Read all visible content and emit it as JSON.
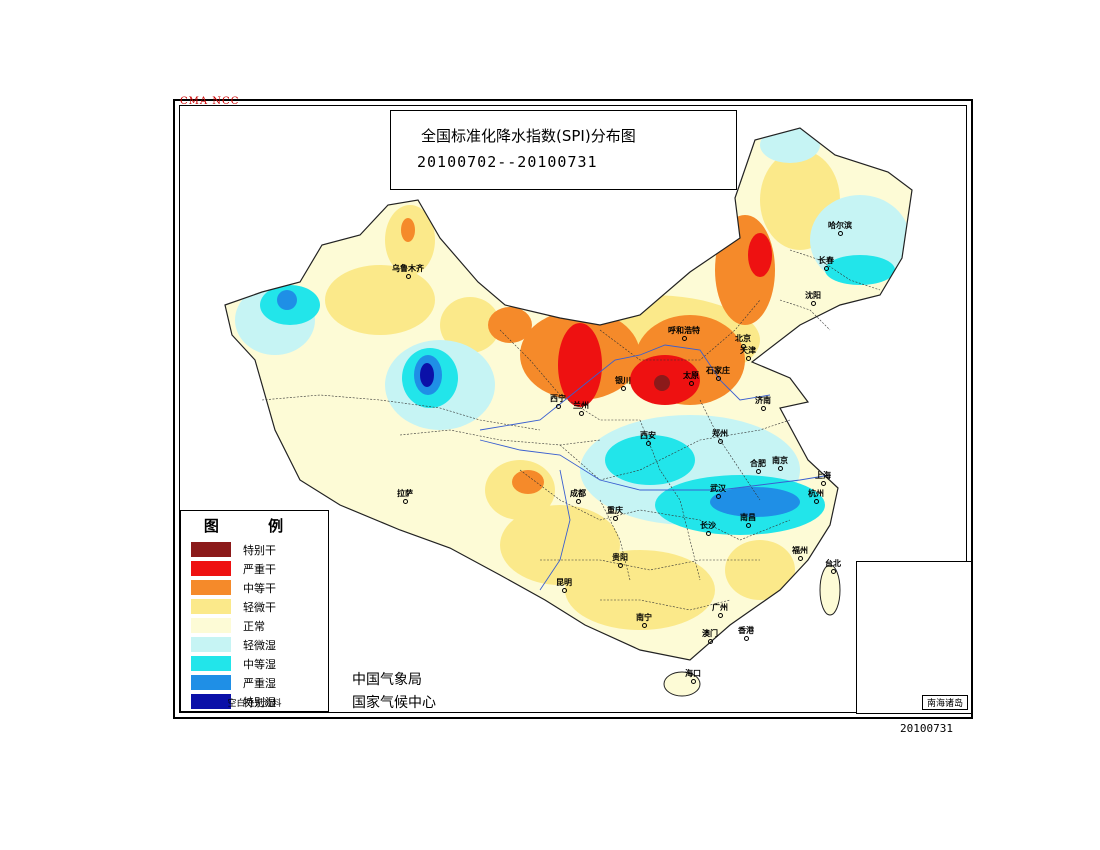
{
  "header": {
    "source_tag": "CMA  NCC",
    "title": "全国标准化降水指数(SPI)分布图",
    "date_range": "20100702--20100731"
  },
  "legend": {
    "title": "图 例",
    "items": [
      {
        "label": "特别干",
        "color": "#8b1a1a"
      },
      {
        "label": "严重干",
        "color": "#ee1111"
      },
      {
        "label": "中等干",
        "color": "#f58a2a"
      },
      {
        "label": "轻微干",
        "color": "#fbe98a"
      },
      {
        "label": "正常",
        "color": "#fdfbd6"
      },
      {
        "label": "轻微湿",
        "color": "#c6f4f4"
      },
      {
        "label": "中等湿",
        "color": "#22e5ea"
      },
      {
        "label": "严重湿",
        "color": "#1f8fe6"
      },
      {
        "label": "特别湿",
        "color": "#0b10a8"
      }
    ],
    "note": "空白处无资料"
  },
  "agency": {
    "line1": "中国气象局",
    "line2": "国家气候中心"
  },
  "inset": {
    "label": "南海诸岛"
  },
  "footer": {
    "date": "20100731"
  },
  "cities": [
    {
      "name": "乌鲁木齐"
    },
    {
      "name": "哈尔滨"
    },
    {
      "name": "长春"
    },
    {
      "name": "沈阳"
    },
    {
      "name": "呼和浩特"
    },
    {
      "name": "北京"
    },
    {
      "name": "天津"
    },
    {
      "name": "银川"
    },
    {
      "name": "太原"
    },
    {
      "name": "石家庄"
    },
    {
      "name": "西宁"
    },
    {
      "name": "兰州"
    },
    {
      "name": "济南"
    },
    {
      "name": "西安"
    },
    {
      "name": "郑州"
    },
    {
      "name": "合肥"
    },
    {
      "name": "南京"
    },
    {
      "name": "上海"
    },
    {
      "name": "拉萨"
    },
    {
      "name": "成都"
    },
    {
      "name": "武汉"
    },
    {
      "name": "杭州"
    },
    {
      "name": "重庆"
    },
    {
      "name": "南昌"
    },
    {
      "name": "长沙"
    },
    {
      "name": "福州"
    },
    {
      "name": "贵阳"
    },
    {
      "name": "台北"
    },
    {
      "name": "昆明"
    },
    {
      "name": "南宁"
    },
    {
      "name": "广州"
    },
    {
      "name": "香港"
    },
    {
      "name": "澳门"
    },
    {
      "name": "海口"
    }
  ]
}
